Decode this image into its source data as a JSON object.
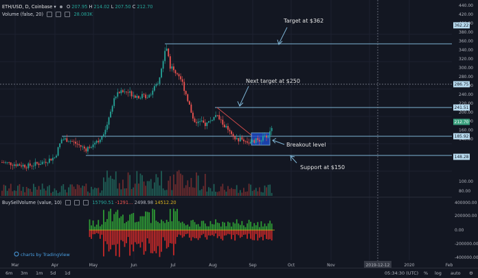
{
  "header": {
    "symbol": "ETH/USD, D, Coinbase",
    "caret": "▾",
    "ohlc": [
      {
        "k": "O",
        "v": "207.95"
      },
      {
        "k": "H",
        "v": "214.02"
      },
      {
        "k": "L",
        "v": "207.50"
      },
      {
        "k": "C",
        "v": "212.70"
      }
    ],
    "volume_label": "Volume (false, 20)",
    "volume_value": "28.083K"
  },
  "indicator": {
    "label": "BuySellVolume (value, 10)",
    "v1": "15790.51",
    "v2": "-1291…",
    "v3": "2498.98",
    "v4": "14512.20"
  },
  "annotations": {
    "target": "Target at $362",
    "next_target": "Next target at $250",
    "breakout": "Breakout level",
    "support": "Support at $150"
  },
  "price_axis": [
    "440.00",
    "420.00",
    "400.00",
    "380.00",
    "360.00",
    "340.00",
    "320.00",
    "300.00",
    "280.00",
    "260.00",
    "240.00",
    "220.00",
    "200.00",
    "180.00",
    "160.00",
    "140.00",
    "100.00",
    "80.00"
  ],
  "price_tags": {
    "t362": "362.22",
    "t286": "286.75",
    "t241": "241.51",
    "t212": "212.70",
    "t185": "185.92",
    "t148": "148.28"
  },
  "indicator_axis": [
    "400000.00",
    "200000.00",
    "0.00",
    "-200000.00",
    "-400000.00"
  ],
  "time_axis": [
    "Mar",
    "Apr",
    "May",
    "Jun",
    "Jul",
    "Aug",
    "Sep",
    "Oct",
    "Nov",
    "Dec",
    "2020",
    "Feb"
  ],
  "crosshair_date": "2019-12-12",
  "watermark": "charts by TradingView",
  "toolbar": {
    "ranges": [
      "6m",
      "3m",
      "1m",
      "5d",
      "1d"
    ],
    "time": "05:34:30 (UTC)",
    "pct": "%",
    "log": "log",
    "auto": "auto"
  },
  "colors": {
    "background": "#131722",
    "up": "#26a69a",
    "down": "#ef5350",
    "level_line": "#7fb6d6",
    "tag_bg": "#b9dcf0",
    "last_price_tag": "#3aa17e",
    "breakout_box": "#1e4fd8",
    "trendline": "#d14b4b"
  },
  "chart_data": {
    "type": "candlestick",
    "symbol": "ETH/USD",
    "timeframe": "D",
    "x": [
      "Mar",
      "Apr",
      "May",
      "Jun",
      "Jul",
      "Aug",
      "Sep"
    ],
    "close_approx": [
      135,
      140,
      165,
      250,
      290,
      210,
      212.7
    ],
    "levels": [
      362.22,
      241.51,
      185.92,
      148.28
    ],
    "last_price": 212.7,
    "ylim": [
      80,
      440
    ]
  }
}
